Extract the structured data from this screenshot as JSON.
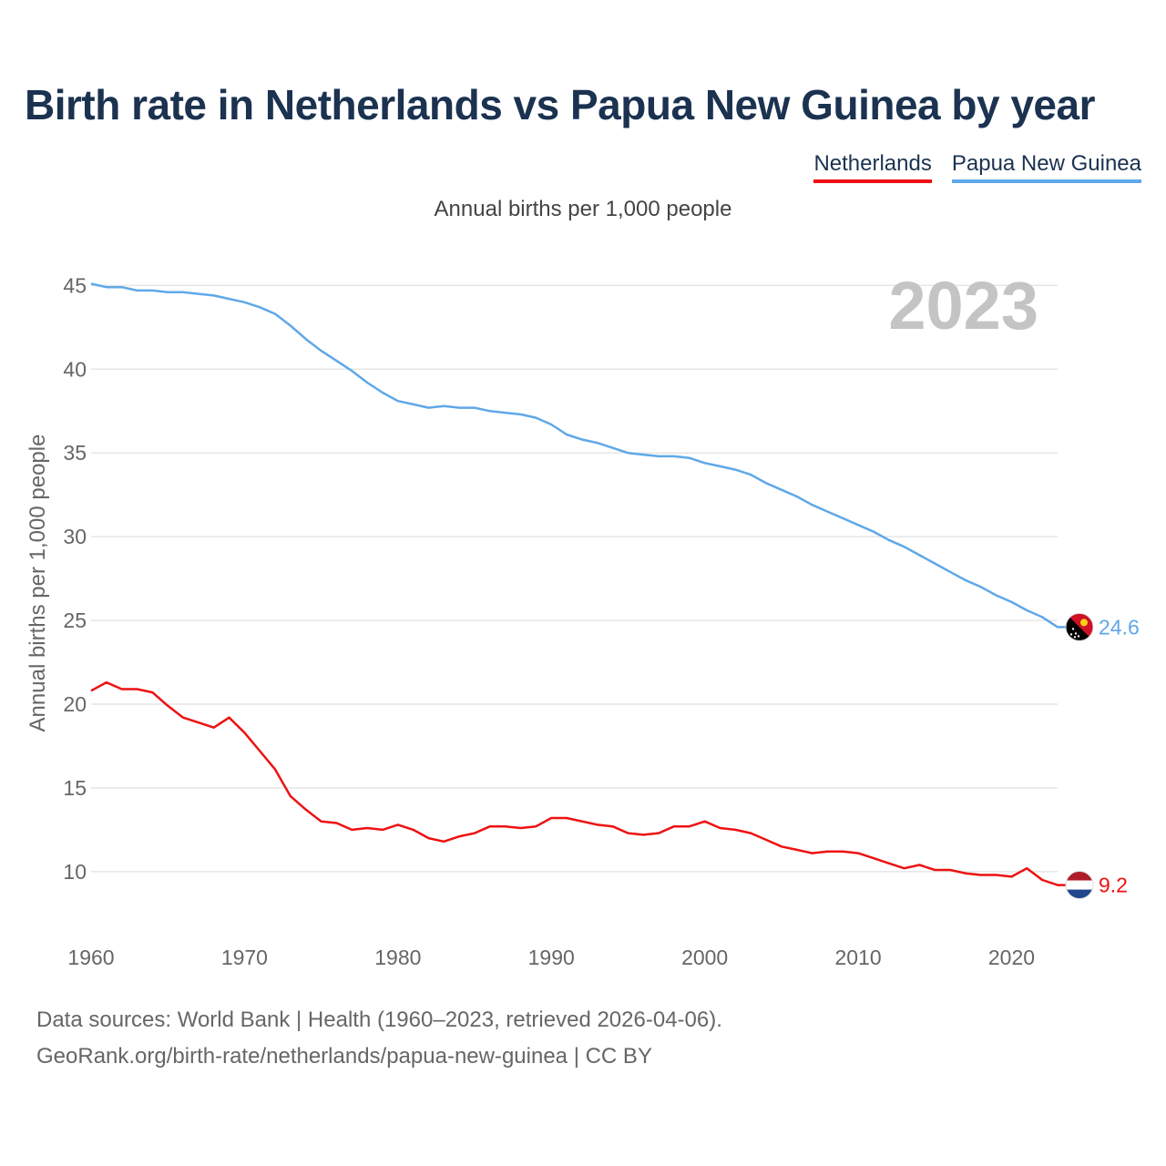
{
  "title": "Birth rate in Netherlands vs Papua New Guinea by year",
  "subtitle": "Annual births per 1,000 people",
  "legend": [
    {
      "label": "Netherlands",
      "color": "#ee1111"
    },
    {
      "label": "Papua New Guinea",
      "color": "#5fa8e8"
    }
  ],
  "year_badge": "2023",
  "footer": {
    "line1": "Data sources: World Bank | Health (1960–2023, retrieved 2026-04-06).",
    "line2": "GeoRank.org/birth-rate/netherlands/papua-new-guinea | CC BY"
  },
  "chart_data": {
    "type": "line",
    "title": "Birth rate in Netherlands vs Papua New Guinea by year",
    "xlabel": "",
    "ylabel": "Annual births per 1,000 people",
    "xlim": [
      1960,
      2023
    ],
    "ylim": [
      7,
      46
    ],
    "xticks": [
      1960,
      1970,
      1980,
      1990,
      2000,
      2010,
      2020
    ],
    "yticks": [
      10,
      15,
      20,
      25,
      30,
      35,
      40,
      45
    ],
    "grid": true,
    "x": [
      1960,
      1961,
      1962,
      1963,
      1964,
      1965,
      1966,
      1967,
      1968,
      1969,
      1970,
      1971,
      1972,
      1973,
      1974,
      1975,
      1976,
      1977,
      1978,
      1979,
      1980,
      1981,
      1982,
      1983,
      1984,
      1985,
      1986,
      1987,
      1988,
      1989,
      1990,
      1991,
      1992,
      1993,
      1994,
      1995,
      1996,
      1997,
      1998,
      1999,
      2000,
      2001,
      2002,
      2003,
      2004,
      2005,
      2006,
      2007,
      2008,
      2009,
      2010,
      2011,
      2012,
      2013,
      2014,
      2015,
      2016,
      2017,
      2018,
      2019,
      2020,
      2021,
      2022,
      2023
    ],
    "series": [
      {
        "name": "Netherlands",
        "color": "#ee1111",
        "end_label": "9.2",
        "values": [
          20.8,
          21.3,
          20.9,
          20.9,
          20.7,
          19.9,
          19.2,
          18.9,
          18.6,
          19.2,
          18.3,
          17.2,
          16.1,
          14.5,
          13.7,
          13.0,
          12.9,
          12.5,
          12.6,
          12.5,
          12.8,
          12.5,
          12.0,
          11.8,
          12.1,
          12.3,
          12.7,
          12.7,
          12.6,
          12.7,
          13.2,
          13.2,
          13.0,
          12.8,
          12.7,
          12.3,
          12.2,
          12.3,
          12.7,
          12.7,
          13.0,
          12.6,
          12.5,
          12.3,
          11.9,
          11.5,
          11.3,
          11.1,
          11.2,
          11.2,
          11.1,
          10.8,
          10.5,
          10.2,
          10.4,
          10.1,
          10.1,
          9.9,
          9.8,
          9.8,
          9.7,
          10.2,
          9.5,
          9.2
        ]
      },
      {
        "name": "Papua New Guinea",
        "color": "#5fa8e8",
        "end_label": "24.6",
        "values": [
          45.1,
          44.9,
          44.9,
          44.7,
          44.7,
          44.6,
          44.6,
          44.5,
          44.4,
          44.2,
          44.0,
          43.7,
          43.3,
          42.6,
          41.8,
          41.1,
          40.5,
          39.9,
          39.2,
          38.6,
          38.1,
          37.9,
          37.7,
          37.8,
          37.7,
          37.7,
          37.5,
          37.4,
          37.3,
          37.1,
          36.7,
          36.1,
          35.8,
          35.6,
          35.3,
          35.0,
          34.9,
          34.8,
          34.8,
          34.7,
          34.4,
          34.2,
          34.0,
          33.7,
          33.2,
          32.8,
          32.4,
          31.9,
          31.5,
          31.1,
          30.7,
          30.3,
          29.8,
          29.4,
          28.9,
          28.4,
          27.9,
          27.4,
          27.0,
          26.5,
          26.1,
          25.6,
          25.2,
          24.6
        ]
      }
    ]
  }
}
